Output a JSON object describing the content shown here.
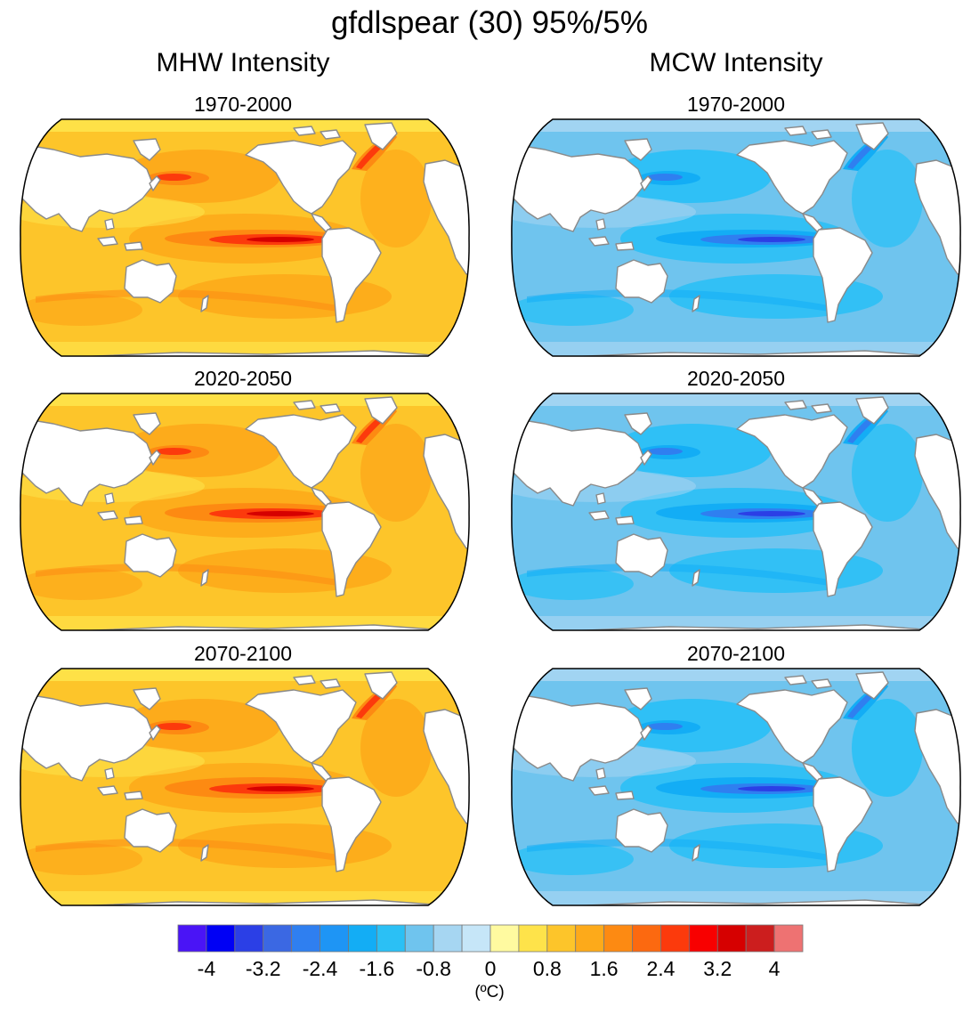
{
  "title": "gfdlspear (30) 95%/5%",
  "columns": [
    {
      "heading": "MHW Intensity",
      "scheme": "warm"
    },
    {
      "heading": "MCW Intensity",
      "scheme": "cold"
    }
  ],
  "periods": [
    "1970-2000",
    "2020-2050",
    "2070-2100"
  ],
  "colorbar": {
    "colors": [
      "#4a14f6",
      "#0000f5",
      "#2b3fe6",
      "#3b68e3",
      "#2f7ff0",
      "#1e95f5",
      "#13adf5",
      "#2bc0f5",
      "#6fc4ee",
      "#a6d6f2",
      "#c6e6f8",
      "#fffaa0",
      "#fee34a",
      "#fdc52a",
      "#fdaa1a",
      "#fd8a12",
      "#fc6910",
      "#fc3a0c",
      "#f80000",
      "#d60000",
      "#cc1e1e",
      "#ee7272"
    ],
    "tick_labels": [
      "-4",
      "-3.2",
      "-2.4",
      "-1.6",
      "-0.8",
      "0",
      "0.8",
      "1.6",
      "2.4",
      "3.2",
      "4"
    ],
    "unit": "(ºC)"
  },
  "map_palette": {
    "warm": {
      "bg": "#fdc52a",
      "mid": "#fdaa1a",
      "high": "#fd8a12",
      "hot": "#fc3a0c",
      "max": "#d60000",
      "light": "#fee34a"
    },
    "cold": {
      "bg": "#6fc4ee",
      "mid": "#2bc0f5",
      "high": "#13adf5",
      "hot": "#2f7ff0",
      "max": "#2b3fe6",
      "light": "#a6d6f2"
    },
    "coast": "#8a8a8a",
    "land": "#ffffff"
  }
}
